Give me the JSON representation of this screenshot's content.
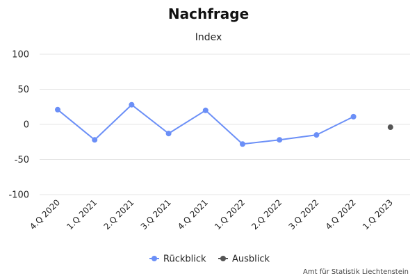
{
  "chart_data": {
    "type": "line",
    "title": "Nachfrage",
    "subtitle": "Index",
    "categories": [
      "4.Q 2020",
      "1.Q 2021",
      "2.Q 2021",
      "3.Q 2021",
      "4.Q 2021",
      "1.Q 2022",
      "2.Q 2022",
      "3.Q 2022",
      "4.Q 2022",
      "1.Q 2023"
    ],
    "series": [
      {
        "name": "Rückblick",
        "color": "#6b8ff7",
        "values": [
          21,
          -22,
          28,
          -13,
          20,
          -28,
          -22,
          -15,
          11,
          null
        ],
        "line": true
      },
      {
        "name": "Ausblick",
        "color": "#555555",
        "values": [
          null,
          null,
          null,
          null,
          null,
          null,
          null,
          null,
          null,
          -4
        ],
        "line": false
      }
    ],
    "ylim": [
      -100,
      100
    ],
    "yticks": [
      100,
      50,
      0,
      -50,
      -100
    ],
    "grid": true,
    "legend_position": "bottom-center",
    "credit": "Amt für Statistik Liechtenstein"
  }
}
